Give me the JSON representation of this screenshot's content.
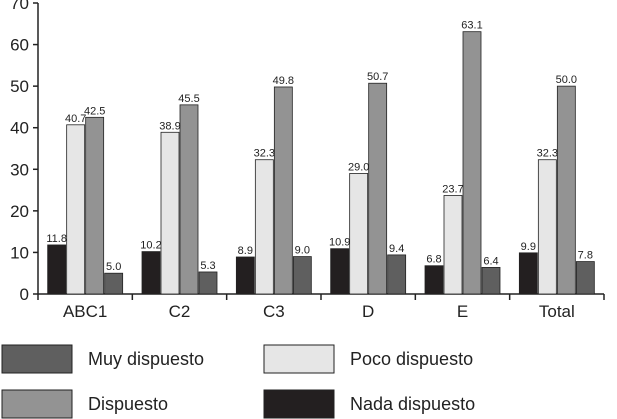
{
  "chart_data": {
    "type": "bar",
    "title": "",
    "xlabel": "",
    "ylabel": "",
    "ylim": [
      0,
      70
    ],
    "yticks": [
      0,
      10,
      20,
      30,
      40,
      50,
      60,
      70
    ],
    "grid": false,
    "categories": [
      "ABC1",
      "C2",
      "C3",
      "D",
      "E",
      "Total"
    ],
    "series": [
      {
        "name": "Nada dispuesto",
        "color": "#231f20",
        "values": [
          11.8,
          10.2,
          8.9,
          10.9,
          6.8,
          9.9
        ],
        "labels": [
          "11.8",
          "10.2",
          "8.9",
          "10.9",
          "6.8",
          "9.9"
        ]
      },
      {
        "name": "Poco dispuesto",
        "color": "#e6e6e6",
        "values": [
          40.7,
          38.9,
          32.3,
          29.0,
          23.7,
          32.3
        ],
        "labels": [
          "40.7",
          "38.9",
          "32.3",
          "29.0",
          "23.7",
          "32.3"
        ]
      },
      {
        "name": "Dispuesto",
        "color": "#939393",
        "values": [
          42.5,
          45.5,
          49.8,
          50.7,
          63.1,
          50.0
        ],
        "labels": [
          "42.5",
          "45.5",
          "49.8",
          "50.7",
          "63.1",
          "50.0"
        ]
      },
      {
        "name": "Muy dispuesto",
        "color": "#5f5f5f",
        "values": [
          5.0,
          5.3,
          9.0,
          9.4,
          6.4,
          7.8
        ],
        "labels": [
          "5.0",
          "5.3",
          "9.0",
          "9.4",
          "6.4",
          "7.8"
        ]
      }
    ],
    "legend": {
      "placement": "bottom",
      "order": [
        "Muy dispuesto",
        "Poco dispuesto",
        "Dispuesto",
        "Nada dispuesto"
      ]
    }
  }
}
